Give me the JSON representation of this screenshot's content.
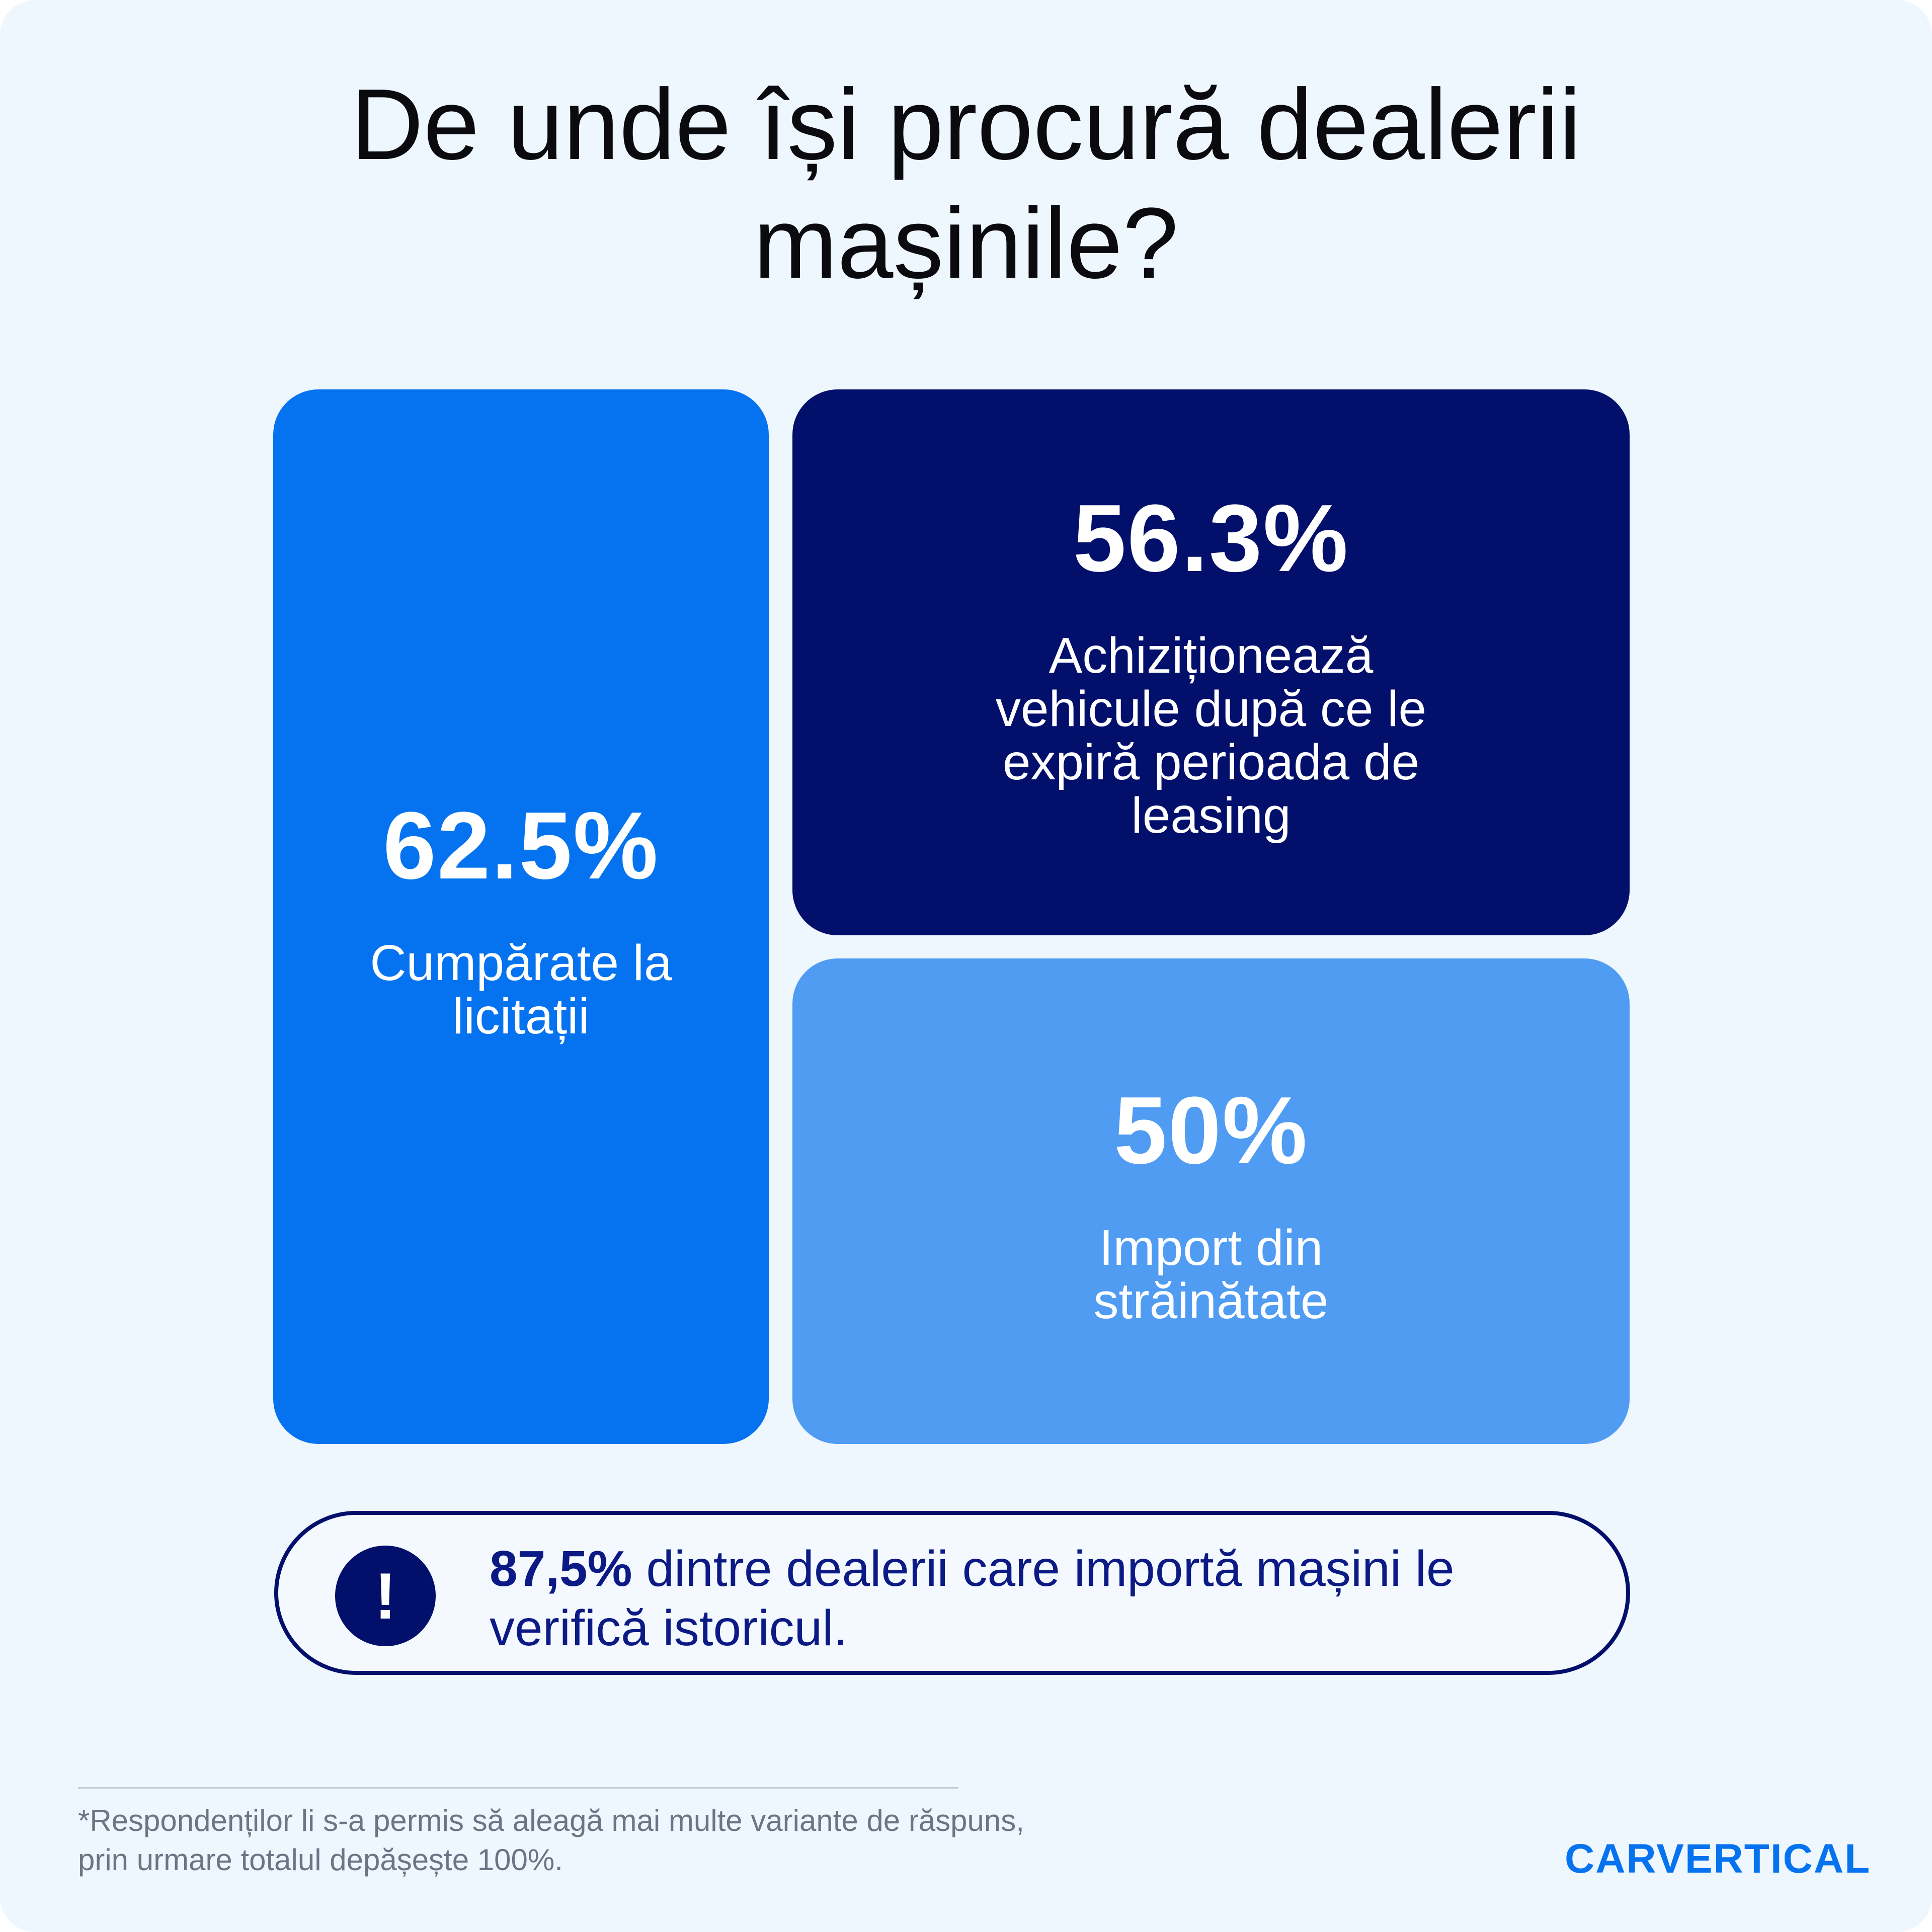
{
  "title": "De unde își procură dealerii mașinile?",
  "chart_data": {
    "type": "table",
    "categories": [
      "Cumpărate la licitații",
      "Achiziționează vehicule după ce le expiră perioada de leasing",
      "Import din străinătate"
    ],
    "values": [
      62.5,
      56.3,
      50
    ],
    "value_labels": [
      "62.5%",
      "56.3%",
      "50%"
    ],
    "unit": "%",
    "colors": [
      "#0573ef",
      "#020f6b",
      "#4f9cf2"
    ]
  },
  "cards": {
    "auctions": {
      "value": "62.5%",
      "label": "Cumpărate la licitații"
    },
    "leasing": {
      "value": "56.3%",
      "label": "Achiziționează vehicule după ce le expiră perioada de leasing"
    },
    "import": {
      "value": "50%",
      "label": "Import din străinătate"
    }
  },
  "callout": {
    "icon": "exclamation-icon",
    "icon_glyph": "!",
    "highlight": "87,5%",
    "text": " dintre dealerii care importă mașini le verifică istoricul."
  },
  "footnote": "*Respondenților li s-a permis să aleagă mai multe variante de răspuns, prin urmare totalul depășește 100%.",
  "brand": "CARVERTICAL",
  "colors": {
    "background": "#eef6fe",
    "accent_blue": "#0573ef",
    "navy": "#020f6b",
    "light_blue": "#4f9cf2"
  }
}
